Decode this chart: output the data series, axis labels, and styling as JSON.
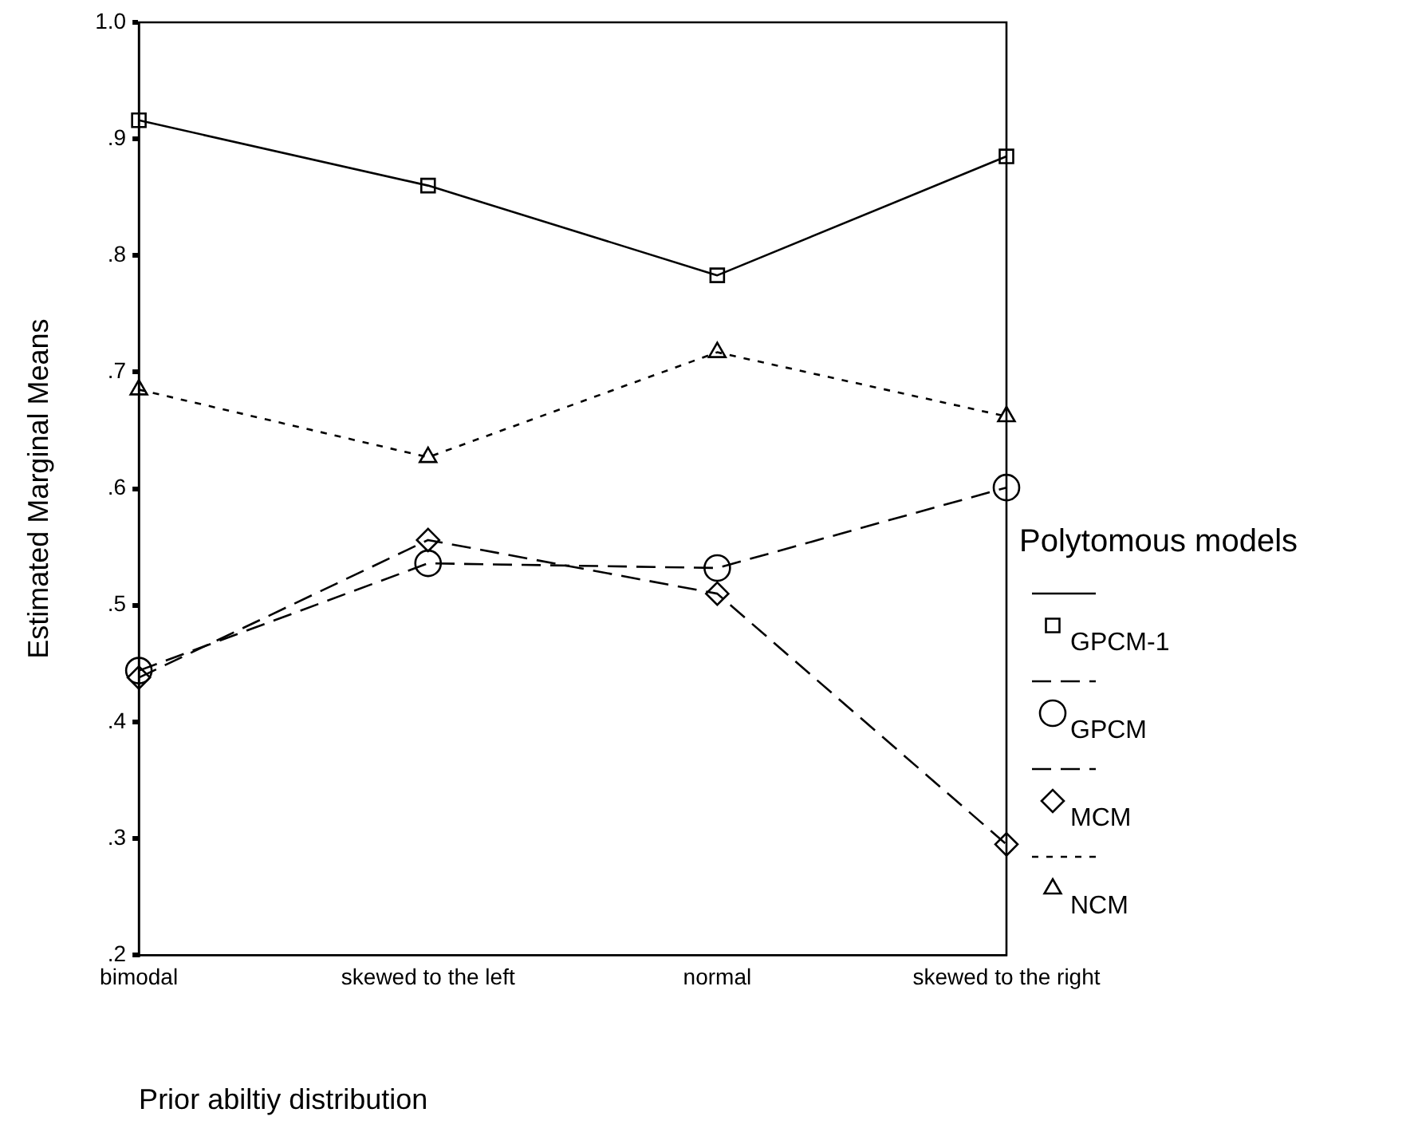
{
  "chart_data": {
    "type": "line",
    "xlabel": "Prior abiltiy distribution",
    "ylabel": "Estimated Marginal Means",
    "legend_title": "Polytomous models",
    "legend": "right",
    "categories": [
      "bimodal",
      "skewed to the left",
      "normal",
      "skewed to the right"
    ],
    "ylim": [
      0.2,
      1.0
    ],
    "yticks": [
      {
        "value": 0.2,
        "label": ".2"
      },
      {
        "value": 0.3,
        "label": ".3"
      },
      {
        "value": 0.4,
        "label": ".4"
      },
      {
        "value": 0.5,
        "label": ".5"
      },
      {
        "value": 0.6,
        "label": ".6"
      },
      {
        "value": 0.7,
        "label": ".7"
      },
      {
        "value": 0.8,
        "label": ".8"
      },
      {
        "value": 0.9,
        "label": ".9"
      },
      {
        "value": 1.0,
        "label": "1.0"
      }
    ],
    "grid": false,
    "series": [
      {
        "name": "GPCM-1",
        "color": "#000000",
        "marker": "square",
        "line_style": "solid",
        "values": [
          0.916,
          0.86,
          0.783,
          0.885
        ]
      },
      {
        "name": "GPCM",
        "color": "#000000",
        "marker": "circle",
        "line_style": "dashed",
        "values": [
          0.444,
          0.536,
          0.532,
          0.601
        ]
      },
      {
        "name": "MCM",
        "color": "#000000",
        "marker": "diamond",
        "line_style": "dashed",
        "values": [
          0.438,
          0.556,
          0.51,
          0.295
        ]
      },
      {
        "name": "NCM",
        "color": "#000000",
        "marker": "triangle",
        "line_style": "dotted",
        "values": [
          0.685,
          0.627,
          0.717,
          0.662
        ]
      }
    ]
  }
}
